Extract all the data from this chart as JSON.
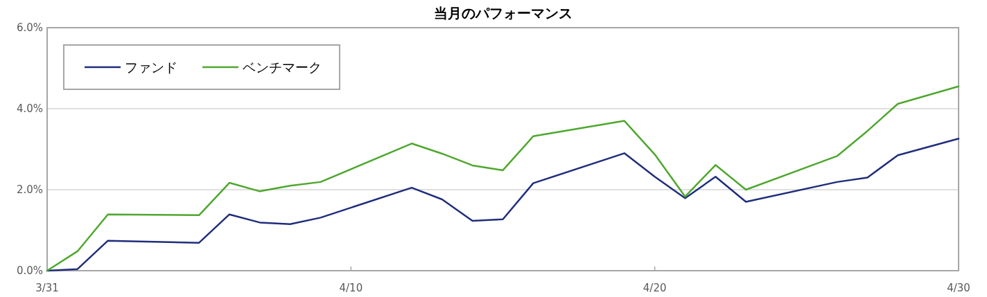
{
  "chart_data": {
    "type": "line",
    "title": "当月のパフォーマンス",
    "x": [
      "--03-31",
      "--04-01",
      "--04-02",
      "--04-05",
      "--04-06",
      "--04-07",
      "--04-08",
      "--04-09",
      "--04-12",
      "--04-13",
      "--04-14",
      "--04-15",
      "--04-16",
      "--04-19",
      "--04-20",
      "--04-21",
      "--04-22",
      "--04-23",
      "--04-26",
      "--04-27",
      "--04-28",
      "--04-30"
    ],
    "series": [
      {
        "name": "ファンド",
        "color": "#1f2d7b",
        "values": [
          0,
          0.04,
          0.74,
          0.69,
          1.39,
          1.19,
          1.15,
          1.31,
          2.05,
          1.76,
          1.23,
          1.27,
          2.16,
          2.9,
          2.32,
          1.79,
          2.32,
          1.7,
          2.19,
          2.3,
          2.85,
          3.26
        ]
      },
      {
        "name": "ベンチマーク",
        "color": "#4ea72e",
        "values": [
          0,
          0.48,
          1.39,
          1.37,
          2.17,
          1.96,
          2.1,
          2.19,
          3.14,
          2.89,
          2.6,
          2.48,
          3.32,
          3.7,
          2.87,
          1.83,
          2.61,
          2.0,
          2.83,
          3.45,
          4.12,
          4.55
        ]
      }
    ],
    "xlim": [
      "--03-31",
      "--04-30"
    ],
    "xticks": [
      {
        "value": "--03-31",
        "label": "3/31"
      },
      {
        "value": "--04-10",
        "label": "4/10"
      },
      {
        "value": "--04-20",
        "label": "4/20"
      },
      {
        "value": "--04-30",
        "label": "4/30"
      }
    ],
    "ylim": [
      0,
      6
    ],
    "yticks": [
      {
        "value": 0,
        "label": "0.0%"
      },
      {
        "value": 2,
        "label": "2.0%"
      },
      {
        "value": 4,
        "label": "4.0%"
      },
      {
        "value": 6,
        "label": "6.0%"
      }
    ],
    "grid": "y",
    "legend": "top left"
  }
}
